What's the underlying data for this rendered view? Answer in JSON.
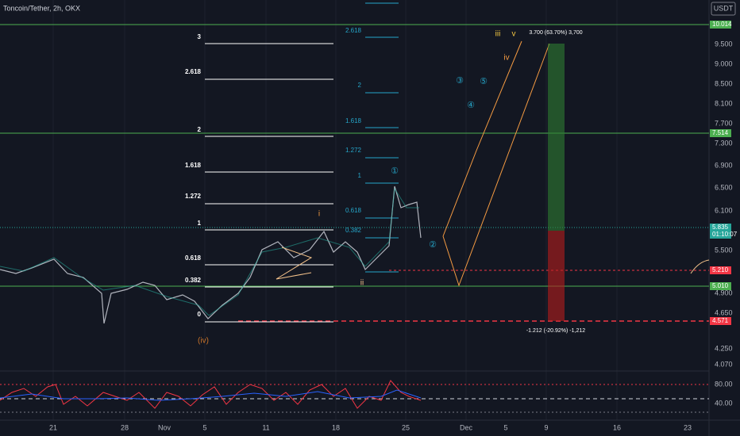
{
  "header": {
    "title": "Toncoin/Tether, 2h, OKX",
    "currency": "USDT"
  },
  "price_axis": [
    "9.500",
    "9.000",
    "8.500",
    "8.100",
    "7.700",
    "7.300",
    "6.900",
    "6.500",
    "6.100",
    "5.500",
    "4.900",
    "4.650",
    "4.250",
    "4.070",
    "80.00",
    "40.00"
  ],
  "date_axis": [
    "21",
    "28",
    "Nov",
    "5",
    "11",
    "18",
    "25",
    "Dec",
    "5",
    "9",
    "16",
    "23"
  ],
  "price_tags": {
    "top_level": "10.014",
    "mid_level": "7.514",
    "last_price": "5.835",
    "countdown": "01:10:07",
    "stop_level": "5.210",
    "support_level": "5.010",
    "low_level": "4.571"
  },
  "fib_left": [
    "3",
    "2.618",
    "2",
    "1.618",
    "1.272",
    "1",
    "0.618",
    "0.382",
    "0"
  ],
  "fib_right": [
    "2.618",
    "2",
    "1.618",
    "1.272",
    "1",
    "0.618",
    "0.382"
  ],
  "wave_labels": [
    "i",
    "ii",
    "iii",
    "iv",
    "v",
    "(iv)",
    "①",
    "②",
    "③",
    "④",
    "⑤"
  ],
  "position": {
    "target": "3.700 (63.70%) 3,700",
    "stop": "-1.212 (-20.92%) -1,212"
  }
}
